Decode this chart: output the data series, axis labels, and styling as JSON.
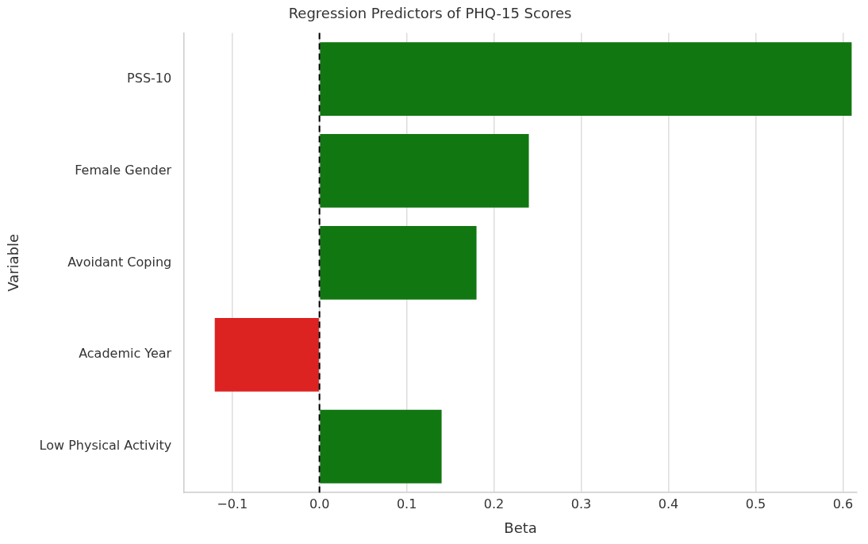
{
  "chart_data": {
    "type": "bar",
    "orientation": "horizontal",
    "title": "Regression Predictors of PHQ-15 Scores",
    "xlabel": "Beta",
    "ylabel": "Variable",
    "categories": [
      "PSS-10",
      "Female Gender",
      "Avoidant Coping",
      "Academic Year",
      "Low Physical Activity"
    ],
    "values": [
      0.61,
      0.24,
      0.18,
      -0.12,
      0.14
    ],
    "colors": [
      "#117711",
      "#117711",
      "#117711",
      "#dd2222",
      "#117711"
    ],
    "xlim": [
      -0.155,
      0.616
    ],
    "xticks": [
      {
        "value": -0.1,
        "label": "−0.1"
      },
      {
        "value": 0,
        "label": "0.0"
      },
      {
        "value": 0.1,
        "label": "0.1"
      },
      {
        "value": 0.2,
        "label": "0.2"
      },
      {
        "value": 0.3,
        "label": "0.3"
      },
      {
        "value": 0.4,
        "label": "0.4"
      },
      {
        "value": 0.5,
        "label": "0.5"
      },
      {
        "value": 0.6,
        "label": "0.6"
      }
    ],
    "grid": "x",
    "legend": false,
    "ref_lines": [
      {
        "axis": "x",
        "value": 0,
        "color": "#000000",
        "line_style": "dashed"
      }
    ]
  }
}
